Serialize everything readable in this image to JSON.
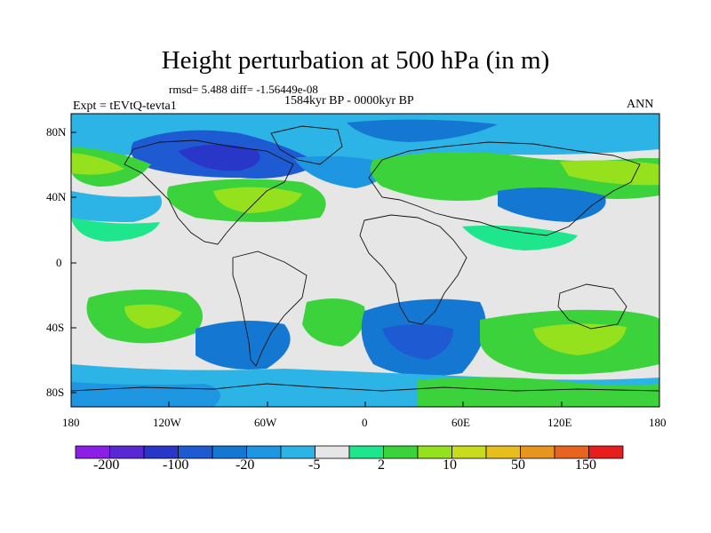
{
  "title": "Height perturbation at 500 hPa (in m)",
  "stats": "rmsd= 5.488 diff= -1.56449e-08",
  "period": "1584kyr BP - 0000kyr BP",
  "experiment": "Expt = tEVtQ-tevta1",
  "season": "ANN",
  "lat_labels": [
    "80N",
    "40N",
    "0",
    "40S",
    "80S"
  ],
  "lon_labels": [
    "180",
    "120W",
    "60W",
    "0",
    "60E",
    "120E",
    "180"
  ],
  "colorbar": {
    "colors": [
      "#8c1ee6",
      "#5a28d2",
      "#2837c8",
      "#1e5ad2",
      "#1478d2",
      "#1e96e1",
      "#2db4e6",
      "#e6e6e6",
      "#1ee68c",
      "#3cd23c",
      "#96e11e",
      "#c8dc1e",
      "#e6be1e",
      "#e6961e",
      "#e6641e",
      "#e61e1e"
    ],
    "labels": [
      "-200",
      "-100",
      "-20",
      "-5",
      "2",
      "10",
      "50",
      "150"
    ]
  },
  "map": {
    "colors": {
      "neutral": "#e6e6e6",
      "light_blue": "#2db4e6",
      "mid_blue": "#1e96e1",
      "blue": "#1478d2",
      "deep_blue": "#1e5ad2",
      "dark_blue": "#2837c8",
      "green": "#3cd23c",
      "cyan_green": "#1ee68c",
      "yellow_green": "#96e11e"
    }
  }
}
